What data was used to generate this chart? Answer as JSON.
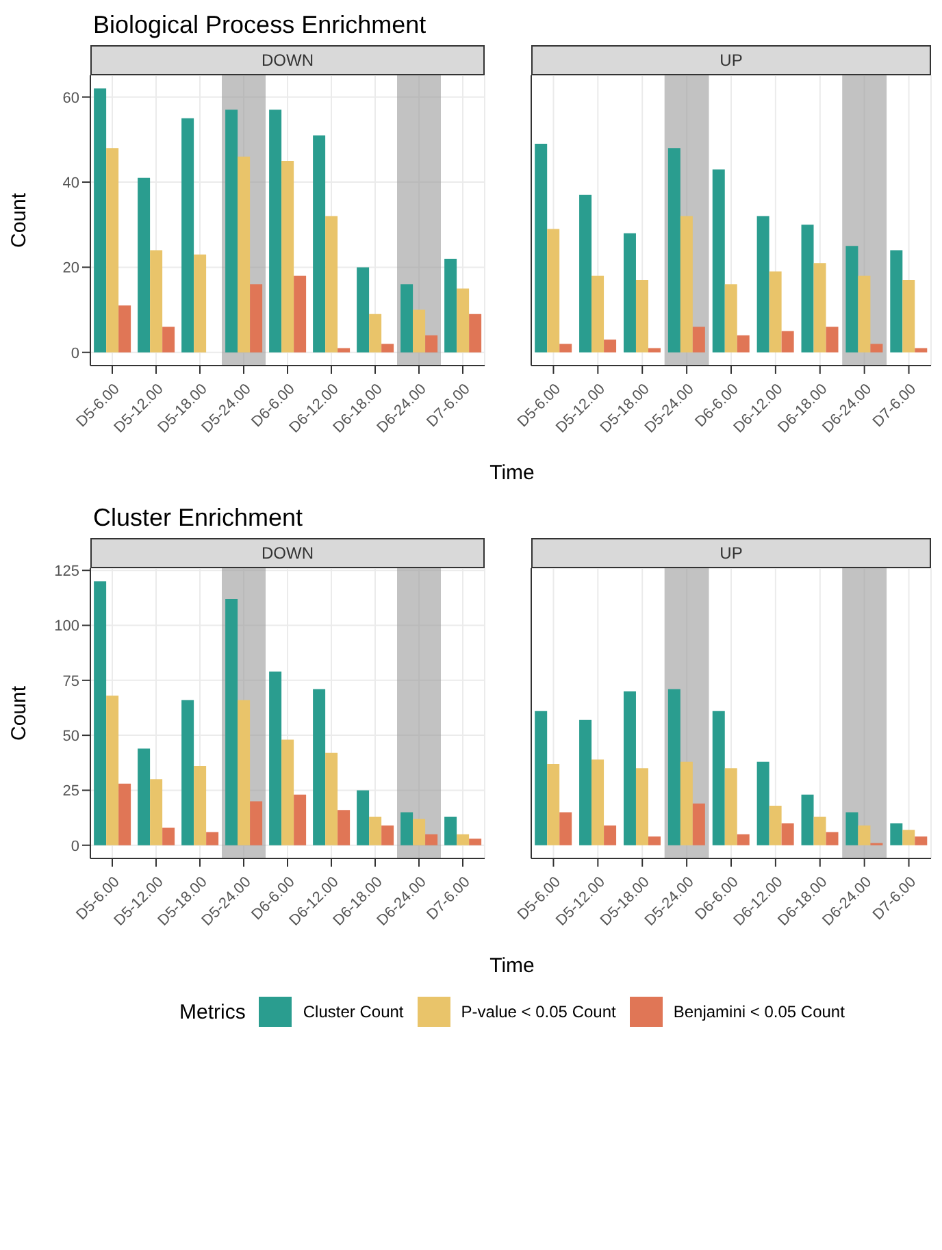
{
  "chart_data": [
    {
      "type": "bar",
      "title": "Biological Process Enrichment",
      "subtitle": "DOWN",
      "xlabel": "Time",
      "ylabel": "Count",
      "categories": [
        "D5-6.00",
        "D5-12.00",
        "D5-18.00",
        "D5-24.00",
        "D6-6.00",
        "D6-12.00",
        "D6-18.00",
        "D6-24.00",
        "D7-6.00"
      ],
      "series": [
        {
          "name": "Cluster Count",
          "color": "#2a9d8f",
          "values": [
            62,
            41,
            55,
            57,
            57,
            51,
            20,
            16,
            22
          ]
        },
        {
          "name": "P-value < 0.05 Count",
          "color": "#e9c46a",
          "values": [
            48,
            24,
            23,
            46,
            45,
            32,
            9,
            10,
            15
          ]
        },
        {
          "name": "Benjamini < 0.05 Count",
          "color": "#e07656",
          "values": [
            11,
            6,
            0,
            16,
            18,
            1,
            2,
            4,
            9
          ]
        }
      ],
      "ylim": [
        -3.1,
        65.1
      ],
      "yticks": [
        0,
        20,
        40,
        60
      ],
      "grid": true,
      "legend": "bottom",
      "legend_title": "Metrics",
      "bands": [
        {
          "axis": "x",
          "from": "D5-24.00",
          "to": "D5-24.00",
          "color": "#999999"
        },
        {
          "axis": "x",
          "from": "D6-24.00",
          "to": "D6-24.00",
          "color": "#999999"
        }
      ]
    },
    {
      "type": "bar",
      "subtitle": "UP",
      "categories": [
        "D5-6.00",
        "D5-12.00",
        "D5-18.00",
        "D5-24.00",
        "D6-6.00",
        "D6-12.00",
        "D6-18.00",
        "D6-24.00",
        "D7-6.00"
      ],
      "series": [
        {
          "color": "#2a9d8f",
          "values": [
            49,
            37,
            28,
            48,
            43,
            32,
            30,
            25,
            24
          ]
        },
        {
          "color": "#e9c46a",
          "values": [
            29,
            18,
            17,
            32,
            16,
            19,
            21,
            18,
            17
          ]
        },
        {
          "color": "#e07656",
          "values": [
            2,
            3,
            1,
            6,
            4,
            5,
            6,
            2,
            1
          ]
        }
      ],
      "ylim": [
        -3.1,
        65.1
      ],
      "yticks": [
        0,
        20,
        40,
        60
      ],
      "grid": true,
      "tick_labels": "x",
      "bands": [
        {
          "axis": "x",
          "from": "D5-24.00",
          "to": "D5-24.00",
          "color": "#999999"
        },
        {
          "axis": "x",
          "from": "D6-24.00",
          "to": "D6-24.00",
          "color": "#999999"
        }
      ]
    },
    {
      "type": "bar",
      "title": "Cluster Enrichment",
      "subtitle": "DOWN",
      "xlabel": "Time",
      "ylabel": "Count",
      "categories": [
        "D5-6.00",
        "D5-12.00",
        "D5-18.00",
        "D5-24.00",
        "D6-6.00",
        "D6-12.00",
        "D6-18.00",
        "D6-24.00",
        "D7-6.00"
      ],
      "series": [
        {
          "color": "#2a9d8f",
          "values": [
            120,
            44,
            66,
            112,
            79,
            71,
            25,
            15,
            13
          ]
        },
        {
          "color": "#e9c46a",
          "values": [
            68,
            30,
            36,
            66,
            48,
            42,
            13,
            12,
            5
          ]
        },
        {
          "color": "#e07656",
          "values": [
            28,
            8,
            6,
            20,
            23,
            16,
            9,
            5,
            3
          ]
        }
      ],
      "ylim": [
        -6,
        126
      ],
      "yticks": [
        0,
        25,
        50,
        75,
        100,
        125
      ],
      "grid": true,
      "bands": [
        {
          "axis": "x",
          "from": "D5-24.00",
          "to": "D5-24.00",
          "color": "#999999"
        },
        {
          "axis": "x",
          "from": "D6-24.00",
          "to": "D6-24.00",
          "color": "#999999"
        }
      ]
    },
    {
      "type": "bar",
      "subtitle": "UP",
      "categories": [
        "D5-6.00",
        "D5-12.00",
        "D5-18.00",
        "D5-24.00",
        "D6-6.00",
        "D6-12.00",
        "D6-18.00",
        "D6-24.00",
        "D7-6.00"
      ],
      "series": [
        {
          "color": "#2a9d8f",
          "values": [
            61,
            57,
            70,
            71,
            61,
            38,
            23,
            15,
            10
          ]
        },
        {
          "color": "#e9c46a",
          "values": [
            37,
            39,
            35,
            38,
            35,
            18,
            13,
            9,
            7
          ]
        },
        {
          "color": "#e07656",
          "values": [
            15,
            9,
            4,
            19,
            5,
            10,
            6,
            1,
            4
          ]
        }
      ],
      "ylim": [
        -6,
        126
      ],
      "yticks": [
        0,
        25,
        50,
        75,
        100,
        125
      ],
      "grid": true,
      "tick_labels": "x",
      "bands": [
        {
          "axis": "x",
          "from": "D5-24.00",
          "to": "D5-24.00",
          "color": "#999999"
        },
        {
          "axis": "x",
          "from": "D6-24.00",
          "to": "D6-24.00",
          "color": "#999999"
        }
      ]
    }
  ]
}
